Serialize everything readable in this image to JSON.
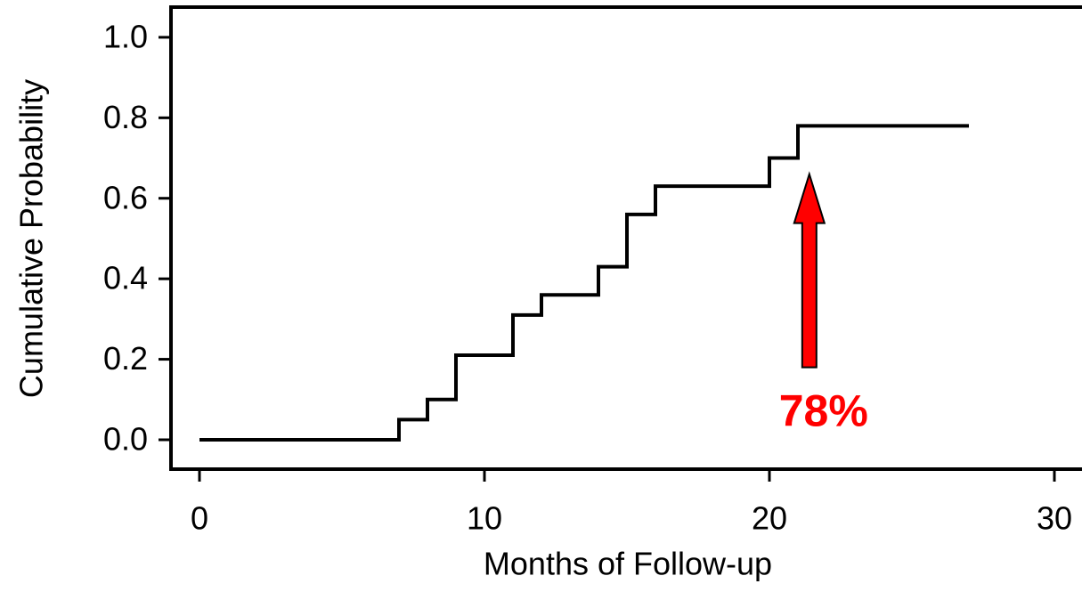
{
  "chart_data": {
    "type": "line",
    "drawstyle": "steps-post",
    "xlabel": "Months of Follow-up",
    "ylabel": "Cumulative Probability",
    "x": [
      0,
      7,
      8,
      9,
      11,
      12,
      14,
      15,
      16,
      20,
      21,
      27
    ],
    "values": [
      0,
      0.05,
      0.1,
      0.21,
      0.31,
      0.36,
      0.43,
      0.56,
      0.63,
      0.7,
      0.78,
      0.78
    ],
    "color": "#000000",
    "xlim": [
      -1,
      30.9
    ],
    "ylim": [
      -0.073,
      1.075
    ],
    "xticks": [
      0,
      10,
      20,
      30
    ],
    "yticks": [
      {
        "value": 0,
        "label": "0.0"
      },
      0.2,
      0.4,
      0.6,
      0.8,
      {
        "value": 1,
        "label": "1.0"
      }
    ],
    "grid": false,
    "annotations": [
      {
        "text": "78%",
        "color": "#ff0000",
        "x": 21.9,
        "y": 0.064,
        "arrow_start": [
          21.4,
          0.18
        ],
        "arrow_end": [
          21.4,
          0.66
        ]
      }
    ]
  }
}
